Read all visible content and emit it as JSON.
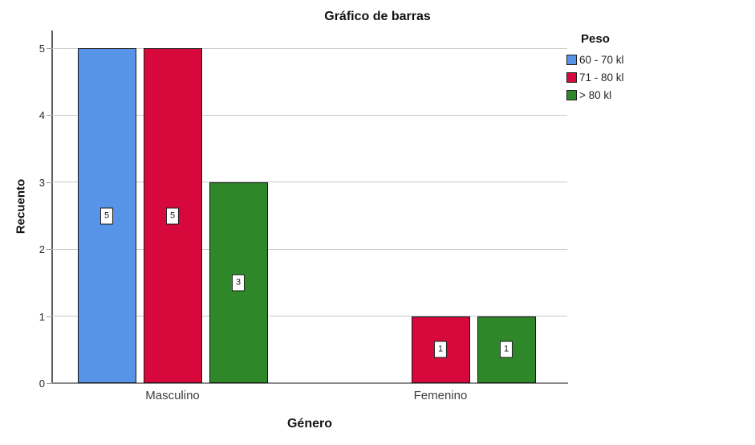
{
  "chart_data": {
    "type": "bar",
    "title": "Gráfico de barras",
    "xlabel": "Género",
    "ylabel": "Recuento",
    "legend_title": "Peso",
    "legend_position": "right",
    "categories": [
      "Masculino",
      "Femenino"
    ],
    "series": [
      {
        "name": "60 - 70 kl",
        "color": "#5794E7",
        "values": [
          5,
          null
        ]
      },
      {
        "name": "71 - 80 kl",
        "color": "#D7093C",
        "values": [
          5,
          1
        ]
      },
      {
        "name": "> 80 kl",
        "color": "#2E8728",
        "values": [
          3,
          1
        ]
      }
    ],
    "ylim": [
      0,
      5
    ],
    "yticks": [
      0,
      1,
      2,
      3,
      4,
      5
    ],
    "grid": true,
    "bar_value_labels": true
  }
}
